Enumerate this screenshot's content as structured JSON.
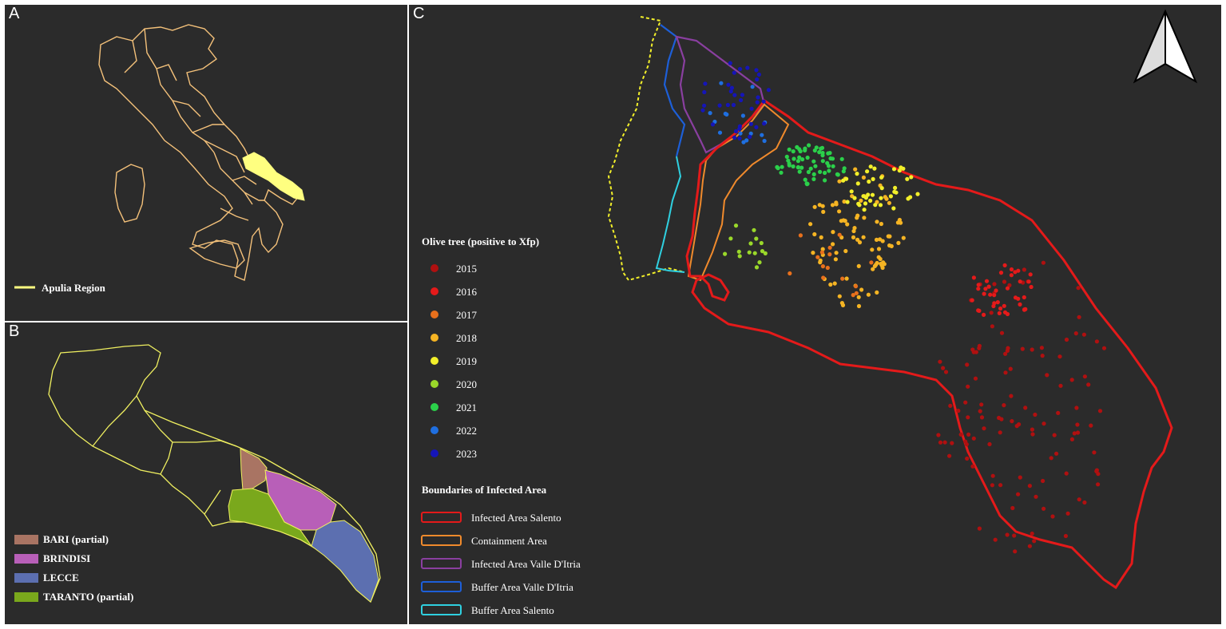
{
  "panelA": {
    "letter": "A",
    "legend": {
      "label": "Apulia Region",
      "color": "#ffff80"
    }
  },
  "panelB": {
    "letter": "B",
    "legend": [
      {
        "label": "BARI (partial)",
        "color": "#a97463"
      },
      {
        "label": "BRINDISI",
        "color": "#b85fb8"
      },
      {
        "label": "LECCE",
        "color": "#5c6fb0"
      },
      {
        "label": "TARANTO (partial)",
        "color": "#7aa81c"
      }
    ]
  },
  "panelC": {
    "letter": "C",
    "north_arrow": "north-arrow",
    "points_title": "Olive tree (positive to Xfp)",
    "years": [
      {
        "label": "2015",
        "color": "#b01010"
      },
      {
        "label": "2016",
        "color": "#e41a1a"
      },
      {
        "label": "2017",
        "color": "#e8701c"
      },
      {
        "label": "2018",
        "color": "#f5b423"
      },
      {
        "label": "2019",
        "color": "#f2ef2a"
      },
      {
        "label": "2020",
        "color": "#9ad82a"
      },
      {
        "label": "2021",
        "color": "#2bd04a"
      },
      {
        "label": "2022",
        "color": "#1f6fe0"
      },
      {
        "label": "2023",
        "color": "#1515b8"
      }
    ],
    "boundaries_title": "Boundaries of Infected Area",
    "boundaries": [
      {
        "label": "Infected Area Salento",
        "color": "#e41a1a"
      },
      {
        "label": "Containment Area",
        "color": "#f08a2c"
      },
      {
        "label": "Infected Area Valle D'Itria",
        "color": "#8a3fa0"
      },
      {
        "label": "Buffer Area Valle D'Itria",
        "color": "#1d5fd8"
      },
      {
        "label": "Buffer Area Salento",
        "color": "#2fd0e0"
      }
    ]
  }
}
